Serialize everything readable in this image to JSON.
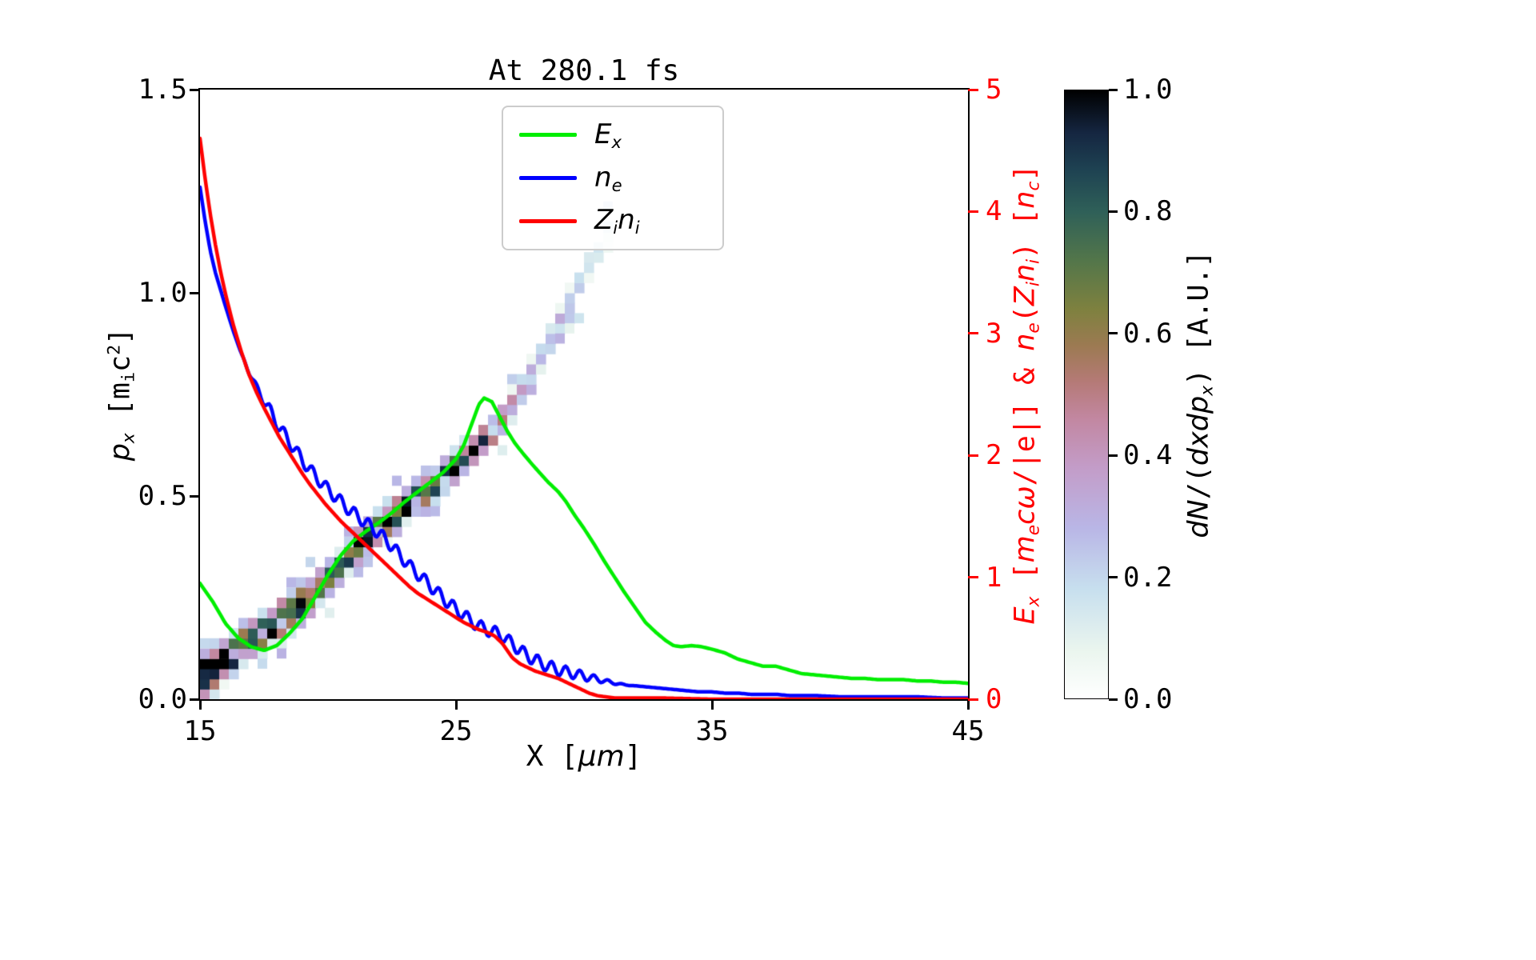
{
  "figure": {
    "title": "At 280.1 fs"
  },
  "labels": {
    "x_parts": [
      {
        "t": "X ["
      },
      {
        "t": "μm",
        "i": true
      },
      {
        "t": "]"
      }
    ],
    "y_left_parts": [
      {
        "t": "p",
        "i": true
      },
      {
        "t": "x",
        "i": true,
        "sub": true
      },
      {
        "t": " [m"
      },
      {
        "t": "i",
        "sub": true
      },
      {
        "t": "c"
      },
      {
        "t": "2",
        "sup": true
      },
      {
        "t": "]"
      }
    ],
    "y_right_parts": [
      {
        "t": "E",
        "i": true
      },
      {
        "t": "x",
        "i": true,
        "sub": true
      },
      {
        "t": " ["
      },
      {
        "t": "m",
        "i": true
      },
      {
        "t": "e",
        "i": true,
        "sub": true
      },
      {
        "t": "c",
        "i": true
      },
      {
        "t": "ω",
        "i": true
      },
      {
        "t": "/|e|] & "
      },
      {
        "t": "n",
        "i": true
      },
      {
        "t": "e",
        "i": true,
        "sub": true
      },
      {
        "t": "("
      },
      {
        "t": "Z",
        "i": true
      },
      {
        "t": "i",
        "i": true,
        "sub": true
      },
      {
        "t": "n",
        "i": true
      },
      {
        "t": "i",
        "i": true,
        "sub": true
      },
      {
        "t": ") ["
      },
      {
        "t": "n",
        "i": true
      },
      {
        "t": "c",
        "i": true,
        "sub": true
      },
      {
        "t": "]"
      }
    ],
    "colorbar_parts": [
      {
        "t": "dN",
        "i": true
      },
      {
        "t": "/("
      },
      {
        "t": "dxdp",
        "i": true
      },
      {
        "t": "x",
        "i": true,
        "sub": true
      },
      {
        "t": ") [A.U.]"
      }
    ]
  },
  "legend": {
    "items": [
      {
        "name": "E_x",
        "color": "#00ee00",
        "parts": [
          {
            "t": "E",
            "i": true
          },
          {
            "t": "x",
            "i": true,
            "sub": true
          }
        ]
      },
      {
        "name": "n_e",
        "color": "#0000ff",
        "parts": [
          {
            "t": "n",
            "i": true
          },
          {
            "t": "e",
            "i": true,
            "sub": true
          }
        ]
      },
      {
        "name": "Z_i n_i",
        "color": "#ff0000",
        "parts": [
          {
            "t": "Z",
            "i": true
          },
          {
            "t": "i",
            "i": true,
            "sub": true
          },
          {
            "t": "n",
            "i": true
          },
          {
            "t": "i",
            "i": true,
            "sub": true
          }
        ]
      }
    ]
  },
  "chart_data": {
    "type": "heatmap+line",
    "title": "At 280.1 fs",
    "x_axis": {
      "label": "X [μm]",
      "range": [
        15,
        45
      ],
      "ticks": [
        "15",
        "25",
        "35",
        "45"
      ]
    },
    "y_left": {
      "label": "p_x [m_i c^2]",
      "range": [
        0,
        1.5
      ],
      "ticks": [
        "0.0",
        "0.5",
        "1.0",
        "1.5"
      ],
      "color": "#000000"
    },
    "y_right": {
      "label": "E_x [m_e c w/|e|] & n_e(Z_i n_i) [n_c]",
      "range": [
        0,
        5
      ],
      "ticks": [
        "0",
        "1",
        "2",
        "3",
        "4",
        "5"
      ],
      "color": "#ff0000"
    },
    "grid": false,
    "legend_position": "upper center",
    "series": [
      {
        "name": "E_x",
        "axis": "right",
        "color": "#00ee00",
        "x": [
          15,
          15.5,
          16,
          16.5,
          17,
          17.5,
          18,
          18.5,
          19,
          19.5,
          20,
          20.5,
          21,
          21.5,
          22,
          22.5,
          23,
          23.5,
          24,
          24.5,
          25,
          25.3,
          25.6,
          25.9,
          26.1,
          26.4,
          26.7,
          27,
          27.3,
          27.6,
          28,
          28.3,
          28.6,
          29,
          29.3,
          29.6,
          30,
          30.4,
          30.8,
          31.2,
          31.6,
          32,
          32.4,
          32.8,
          33.2,
          33.5,
          33.8,
          34.2,
          34.6,
          35,
          35.5,
          36,
          36.5,
          37,
          37.5,
          38,
          38.5,
          39,
          39.5,
          40,
          40.5,
          41,
          41.5,
          42,
          42.5,
          43,
          43.5,
          44,
          44.5,
          45
        ],
        "y": [
          0.95,
          0.8,
          0.62,
          0.5,
          0.43,
          0.4,
          0.44,
          0.54,
          0.66,
          0.84,
          1.02,
          1.18,
          1.3,
          1.38,
          1.45,
          1.53,
          1.62,
          1.7,
          1.78,
          1.86,
          1.97,
          2.08,
          2.25,
          2.42,
          2.47,
          2.44,
          2.32,
          2.2,
          2.1,
          2.02,
          1.92,
          1.85,
          1.78,
          1.7,
          1.62,
          1.52,
          1.4,
          1.27,
          1.13,
          1.0,
          0.87,
          0.75,
          0.63,
          0.55,
          0.48,
          0.44,
          0.43,
          0.44,
          0.43,
          0.41,
          0.38,
          0.33,
          0.3,
          0.27,
          0.27,
          0.24,
          0.21,
          0.2,
          0.19,
          0.18,
          0.17,
          0.17,
          0.16,
          0.16,
          0.16,
          0.15,
          0.15,
          0.14,
          0.14,
          0.13
        ]
      },
      {
        "name": "n_e",
        "axis": "right",
        "color": "#0000ff",
        "x": [
          15,
          15.2,
          15.4,
          15.6,
          15.8,
          16,
          16.3,
          16.6,
          16.9,
          17.2,
          17.5,
          17.8,
          18.1,
          18.4,
          18.7,
          19,
          19.3,
          19.6,
          19.9,
          20.2,
          20.5,
          20.8,
          21.1,
          21.4,
          21.7,
          22,
          22.3,
          22.6,
          22.9,
          23.2,
          23.5,
          23.8,
          24.1,
          24.4,
          24.7,
          25,
          25.3,
          25.6,
          25.9,
          26.2,
          26.5,
          26.8,
          27.1,
          27.4,
          27.7,
          28,
          28.3,
          28.6,
          29,
          29.4,
          29.8,
          30.2,
          30.6,
          31,
          31.5,
          32,
          32.5,
          33,
          33.5,
          34,
          34.5,
          35,
          35.5,
          36,
          36.5,
          37,
          37.5,
          38,
          39,
          40,
          41,
          42,
          43,
          44,
          45
        ],
        "y": [
          4.2,
          3.92,
          3.68,
          3.5,
          3.36,
          3.22,
          3.02,
          2.84,
          2.69,
          2.56,
          2.45,
          2.34,
          2.23,
          2.14,
          2.05,
          1.96,
          1.88,
          1.81,
          1.74,
          1.68,
          1.62,
          1.56,
          1.51,
          1.46,
          1.41,
          1.36,
          1.3,
          1.23,
          1.16,
          1.09,
          1.03,
          0.97,
          0.91,
          0.85,
          0.79,
          0.74,
          0.69,
          0.64,
          0.6,
          0.57,
          0.55,
          0.52,
          0.47,
          0.42,
          0.37,
          0.33,
          0.3,
          0.27,
          0.24,
          0.22,
          0.2,
          0.18,
          0.16,
          0.14,
          0.12,
          0.11,
          0.1,
          0.09,
          0.08,
          0.07,
          0.06,
          0.06,
          0.05,
          0.05,
          0.04,
          0.04,
          0.04,
          0.03,
          0.03,
          0.02,
          0.02,
          0.02,
          0.02,
          0.01,
          0.01
        ],
        "wiggle": {
          "amplitude": 0.05,
          "wavelength": 0.55,
          "from": 16.5,
          "to": 32
        }
      },
      {
        "name": "Z_i n_i",
        "axis": "right",
        "color": "#ff0000",
        "x": [
          15,
          15.2,
          15.4,
          15.6,
          15.8,
          16,
          16.3,
          16.6,
          16.9,
          17.2,
          17.5,
          17.8,
          18.1,
          18.4,
          18.7,
          19,
          19.3,
          19.6,
          19.9,
          20.2,
          20.5,
          20.8,
          21.1,
          21.4,
          21.7,
          22,
          22.3,
          22.6,
          22.9,
          23.2,
          23.5,
          23.8,
          24.1,
          24.4,
          24.7,
          25,
          25.3,
          25.6,
          25.9,
          26.2,
          26.5,
          26.8,
          27,
          27.2,
          27.5,
          27.8,
          28.1,
          28.4,
          28.7,
          29,
          29.3,
          29.6,
          29.9,
          30.2,
          30.5,
          30.8,
          31.2,
          32,
          33,
          35,
          38,
          41,
          45
        ],
        "y": [
          4.6,
          4.27,
          3.98,
          3.73,
          3.51,
          3.32,
          3.07,
          2.86,
          2.67,
          2.52,
          2.39,
          2.27,
          2.15,
          2.05,
          1.95,
          1.85,
          1.76,
          1.68,
          1.6,
          1.53,
          1.46,
          1.4,
          1.34,
          1.28,
          1.22,
          1.16,
          1.1,
          1.04,
          0.98,
          0.92,
          0.87,
          0.83,
          0.79,
          0.75,
          0.71,
          0.67,
          0.63,
          0.6,
          0.57,
          0.55,
          0.52,
          0.46,
          0.4,
          0.34,
          0.29,
          0.26,
          0.23,
          0.21,
          0.19,
          0.17,
          0.14,
          0.11,
          0.08,
          0.05,
          0.03,
          0.02,
          0.01,
          0.01,
          0.01,
          0.0,
          0.0,
          0.0,
          0.0
        ]
      }
    ],
    "phase_space": {
      "quantity": "dN/(dx dp_x) of ions in (x, p_x) space",
      "cell_size": [
        0.375,
        0.025
      ],
      "band": [
        [
          15.0,
          0.05,
          1.0,
          0.055
        ],
        [
          15.5,
          0.075,
          1.0,
          0.05
        ],
        [
          16.0,
          0.1,
          1.0,
          0.045
        ],
        [
          16.5,
          0.12,
          0.95,
          0.04
        ],
        [
          17.0,
          0.145,
          0.95,
          0.04
        ],
        [
          17.5,
          0.165,
          0.9,
          0.04
        ],
        [
          18.0,
          0.19,
          0.95,
          0.04
        ],
        [
          18.5,
          0.21,
          0.9,
          0.04
        ],
        [
          19.0,
          0.235,
          0.8,
          0.04
        ],
        [
          19.5,
          0.26,
          0.65,
          0.04
        ],
        [
          20.0,
          0.295,
          0.85,
          0.04
        ],
        [
          20.5,
          0.33,
          0.8,
          0.038
        ],
        [
          21.0,
          0.365,
          0.9,
          0.038
        ],
        [
          21.5,
          0.395,
          0.95,
          0.036
        ],
        [
          22.0,
          0.42,
          0.9,
          0.036
        ],
        [
          22.5,
          0.445,
          0.85,
          0.035
        ],
        [
          23.0,
          0.47,
          0.9,
          0.035
        ],
        [
          23.5,
          0.5,
          0.85,
          0.035
        ],
        [
          24.0,
          0.52,
          0.9,
          0.034
        ],
        [
          24.5,
          0.55,
          0.92,
          0.034
        ],
        [
          25.0,
          0.575,
          0.9,
          0.033
        ],
        [
          25.5,
          0.6,
          0.88,
          0.033
        ],
        [
          26.0,
          0.63,
          0.8,
          0.032
        ],
        [
          26.5,
          0.665,
          0.65,
          0.032
        ],
        [
          27.0,
          0.705,
          0.45,
          0.03
        ],
        [
          27.5,
          0.755,
          0.33,
          0.03
        ],
        [
          28.0,
          0.81,
          0.28,
          0.028
        ],
        [
          28.5,
          0.865,
          0.24,
          0.028
        ],
        [
          29.0,
          0.925,
          0.26,
          0.028
        ],
        [
          29.5,
          0.985,
          0.28,
          0.028
        ],
        [
          30.0,
          1.045,
          0.22,
          0.026
        ],
        [
          30.5,
          1.1,
          0.18,
          0.026
        ],
        [
          30.9,
          1.13,
          0.12,
          0.024
        ]
      ]
    },
    "colormap": {
      "label": "dN/(dxdp_x) [A.U.]",
      "range": [
        0,
        1
      ],
      "ticks": [
        "0.0",
        "0.2",
        "0.4",
        "0.6",
        "0.8",
        "1.0"
      ],
      "stops": [
        [
          0.0,
          "#ffffff"
        ],
        [
          0.08,
          "#eaf5ee"
        ],
        [
          0.18,
          "#c7dfee"
        ],
        [
          0.28,
          "#b9b6e6"
        ],
        [
          0.38,
          "#c39cc8"
        ],
        [
          0.46,
          "#c287a1"
        ],
        [
          0.52,
          "#b57a77"
        ],
        [
          0.58,
          "#9c7a52"
        ],
        [
          0.64,
          "#7e813f"
        ],
        [
          0.72,
          "#53764a"
        ],
        [
          0.8,
          "#2f6058"
        ],
        [
          0.87,
          "#1e4252"
        ],
        [
          0.93,
          "#152641"
        ],
        [
          1.0,
          "#000000"
        ]
      ]
    }
  }
}
